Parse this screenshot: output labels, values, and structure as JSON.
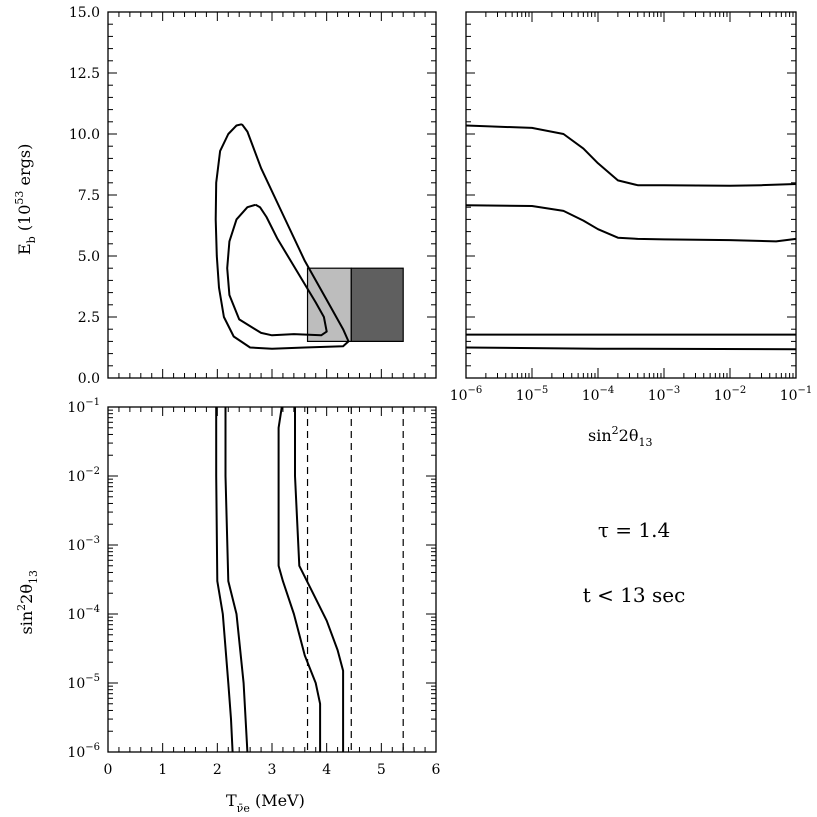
{
  "chart_data": [
    {
      "panel": "top-left",
      "type": "line",
      "ylabel": "E_b (10^53 ergs)",
      "ylabel_parts": {
        "main": "E",
        "sub": "b",
        "rest": " (10",
        "sup": "53",
        "tail": " ergs)"
      },
      "xlim": [
        0,
        6
      ],
      "ylim": [
        0,
        15
      ],
      "yticks": [
        "0.0",
        "2.5",
        "5.0",
        "7.5",
        "10.0",
        "12.5",
        "15.0"
      ],
      "grid": false,
      "series": [
        {
          "values": [
            [
              2.45,
              10.4
            ],
            [
              2.35,
              10.35
            ],
            [
              2.2,
              10.0
            ],
            [
              2.05,
              9.3
            ],
            [
              1.98,
              8.0
            ],
            [
              1.97,
              6.5
            ],
            [
              1.99,
              5.0
            ],
            [
              2.03,
              3.7
            ],
            [
              2.12,
              2.5
            ],
            [
              2.3,
              1.7
            ],
            [
              2.6,
              1.25
            ],
            [
              3.0,
              1.2
            ],
            [
              3.6,
              1.25
            ],
            [
              4.3,
              1.3
            ],
            [
              4.4,
              1.5
            ],
            [
              4.3,
              2.0
            ],
            [
              4.0,
              3.2
            ],
            [
              3.6,
              4.8
            ],
            [
              3.2,
              6.7
            ],
            [
              2.8,
              8.6
            ],
            [
              2.55,
              10.1
            ],
            [
              2.45,
              10.4
            ]
          ]
        },
        {
          "values": [
            [
              2.7,
              7.1
            ],
            [
              2.55,
              7.0
            ],
            [
              2.35,
              6.5
            ],
            [
              2.22,
              5.6
            ],
            [
              2.18,
              4.5
            ],
            [
              2.22,
              3.4
            ],
            [
              2.4,
              2.4
            ],
            [
              2.8,
              1.85
            ],
            [
              3.0,
              1.75
            ],
            [
              3.4,
              1.8
            ],
            [
              3.9,
              1.75
            ],
            [
              4.0,
              1.9
            ],
            [
              3.95,
              2.5
            ],
            [
              3.8,
              3.1
            ],
            [
              3.45,
              4.4
            ],
            [
              3.1,
              5.7
            ],
            [
              2.9,
              6.6
            ],
            [
              2.78,
              7.0
            ],
            [
              2.7,
              7.1
            ]
          ]
        }
      ],
      "shaded_boxes": [
        {
          "x": [
            3.65,
            4.45
          ],
          "y": [
            1.5,
            4.5
          ],
          "color": "#bdbdbd"
        },
        {
          "x": [
            4.45,
            5.4
          ],
          "y": [
            1.5,
            4.5
          ],
          "color": "#5f5f5f"
        }
      ]
    },
    {
      "panel": "top-right",
      "type": "line",
      "xlabel": "sin²2θ13",
      "xlabel_parts": {
        "main": "sin",
        "sup": "2",
        "rest": "2θ",
        "sub": "13"
      },
      "xscale": "log",
      "xlim": [
        1e-06,
        0.1
      ],
      "ylim": [
        0,
        15
      ],
      "xticks": [
        {
          "v": -6,
          "label": "10",
          "exp": "−6"
        },
        {
          "v": -5,
          "label": "10",
          "exp": "−5"
        },
        {
          "v": -4,
          "label": "10",
          "exp": "−4"
        },
        {
          "v": -3,
          "label": "10",
          "exp": "−3"
        },
        {
          "v": -2,
          "label": "10",
          "exp": "−2"
        },
        {
          "v": -1,
          "label": "10",
          "exp": "−1"
        }
      ],
      "grid": false,
      "series": [
        {
          "x": [
            1e-06,
            1e-05,
            3e-05,
            6e-05,
            0.0001,
            0.0002,
            0.0004,
            0.001,
            0.01,
            0.03,
            0.1
          ],
          "y": [
            10.35,
            10.25,
            10.0,
            9.4,
            8.8,
            8.1,
            7.9,
            7.9,
            7.88,
            7.9,
            7.95
          ]
        },
        {
          "x": [
            1e-06,
            1e-05,
            3e-05,
            6e-05,
            0.0001,
            0.0002,
            0.0004,
            0.001,
            0.01,
            0.05,
            0.1
          ],
          "y": [
            7.08,
            7.05,
            6.85,
            6.45,
            6.1,
            5.75,
            5.7,
            5.68,
            5.65,
            5.6,
            5.7
          ]
        },
        {
          "x": [
            1e-06,
            0.1
          ],
          "y": [
            1.78,
            1.78
          ]
        },
        {
          "x": [
            1e-06,
            0.0001,
            0.1
          ],
          "y": [
            1.25,
            1.2,
            1.18
          ]
        }
      ]
    },
    {
      "panel": "bottom-left",
      "type": "line",
      "xlabel": "T_ν̄e (MeV)",
      "xlabel_parts": {
        "main": "T",
        "sub": "ν̄e",
        "rest": " (MeV)"
      },
      "ylabel": "sin²2θ13",
      "ylabel_parts": {
        "main": "sin",
        "sup": "2",
        "rest": "2θ",
        "sub": "13"
      },
      "xlim": [
        0,
        6
      ],
      "ylim": [
        1e-06,
        0.1
      ],
      "yscale": "log",
      "xticks": [
        "0",
        "1",
        "2",
        "3",
        "4",
        "5",
        "6"
      ],
      "yticks": [
        {
          "v": -6,
          "label": "10",
          "exp": "−6"
        },
        {
          "v": -5,
          "label": "10",
          "exp": "−5"
        },
        {
          "v": -4,
          "label": "10",
          "exp": "−4"
        },
        {
          "v": -3,
          "label": "10",
          "exp": "−3"
        },
        {
          "v": -2,
          "label": "10",
          "exp": "−2"
        },
        {
          "v": -1,
          "label": "10",
          "exp": "−1"
        }
      ],
      "grid": false,
      "series": [
        {
          "x": [
            1.98,
            1.98,
            2.0,
            2.1,
            2.2,
            2.25,
            2.28
          ],
          "y": [
            0.1,
            0.01,
            0.0003,
            0.0001,
            1e-05,
            3e-06,
            1e-06
          ]
        },
        {
          "x": [
            2.15,
            2.15,
            2.2,
            2.35,
            2.48,
            2.55
          ],
          "y": [
            0.1,
            0.01,
            0.0003,
            0.0001,
            1e-05,
            1e-06
          ]
        },
        {
          "x": [
            3.18,
            3.12,
            3.12,
            3.2,
            3.4,
            3.6,
            3.8,
            3.88,
            3.88
          ],
          "y": [
            0.1,
            0.05,
            0.0005,
            0.0003,
            0.0001,
            2.5e-05,
            1e-05,
            5e-06,
            1e-06
          ]
        },
        {
          "x": [
            3.42,
            3.42,
            3.5,
            3.75,
            4.0,
            4.2,
            4.3,
            4.3
          ],
          "y": [
            0.1,
            0.01,
            0.0005,
            0.0002,
            8e-05,
            3e-05,
            1.5e-05,
            1e-06
          ]
        }
      ],
      "vlines_dashed": [
        3.65,
        4.45,
        5.4
      ]
    }
  ],
  "annotations": {
    "tau_label": "τ  =  1.4",
    "time_label": "t  <  13 sec"
  }
}
